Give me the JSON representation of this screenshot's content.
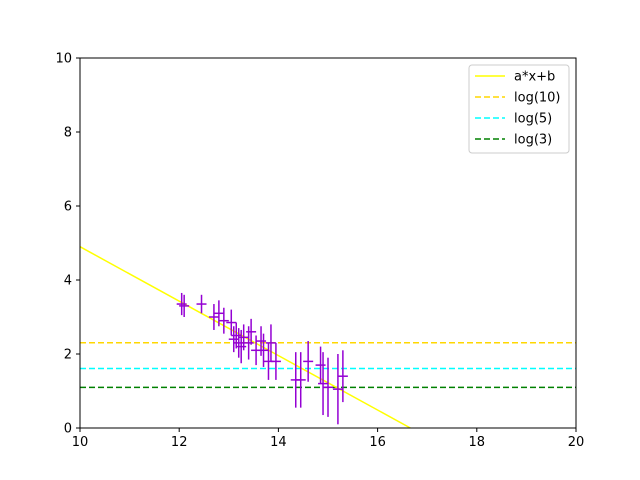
{
  "chart_data": {
    "type": "scatter",
    "title": "",
    "xlabel": "",
    "ylabel": "",
    "xlim": [
      10,
      20
    ],
    "ylim": [
      0,
      10
    ],
    "xticks": [
      "10",
      "12",
      "14",
      "16",
      "18",
      "20"
    ],
    "yticks": [
      "0",
      "2",
      "4",
      "6",
      "8",
      "10"
    ],
    "grid": false,
    "legend_position": "top-right",
    "fit_line": {
      "name": "a*x+b",
      "color": "#ffff00",
      "x": [
        10,
        16.66
      ],
      "y": [
        4.9,
        0
      ]
    },
    "hlines": [
      {
        "name": "log(10)",
        "y": 2.303,
        "color": "#ffd700",
        "style": "dashed"
      },
      {
        "name": "log(5)",
        "y": 1.609,
        "color": "#00ffff",
        "style": "dashed"
      },
      {
        "name": "log(3)",
        "y": 1.099,
        "color": "#008000",
        "style": "dashed"
      }
    ],
    "errorbar_series": {
      "color": "#9400d3",
      "points": [
        {
          "x": 12.05,
          "y": 3.35,
          "err": 0.3
        },
        {
          "x": 12.1,
          "y": 3.3,
          "err": 0.3
        },
        {
          "x": 12.45,
          "y": 3.35,
          "err": 0.25
        },
        {
          "x": 12.7,
          "y": 3.0,
          "err": 0.35
        },
        {
          "x": 12.8,
          "y": 3.1,
          "err": 0.35
        },
        {
          "x": 12.9,
          "y": 2.9,
          "err": 0.35
        },
        {
          "x": 13.05,
          "y": 2.85,
          "err": 0.35
        },
        {
          "x": 13.1,
          "y": 2.4,
          "err": 0.35
        },
        {
          "x": 13.15,
          "y": 2.5,
          "err": 0.35
        },
        {
          "x": 13.2,
          "y": 2.3,
          "err": 0.4
        },
        {
          "x": 13.25,
          "y": 2.2,
          "err": 0.45
        },
        {
          "x": 13.3,
          "y": 2.45,
          "err": 0.35
        },
        {
          "x": 13.4,
          "y": 2.3,
          "err": 0.45
        },
        {
          "x": 13.45,
          "y": 2.6,
          "err": 0.35
        },
        {
          "x": 13.55,
          "y": 2.1,
          "err": 0.4
        },
        {
          "x": 13.65,
          "y": 2.35,
          "err": 0.4
        },
        {
          "x": 13.7,
          "y": 2.1,
          "err": 0.45
        },
        {
          "x": 13.8,
          "y": 1.8,
          "err": 0.5
        },
        {
          "x": 13.85,
          "y": 2.3,
          "err": 0.5
        },
        {
          "x": 13.95,
          "y": 1.8,
          "err": 0.5
        },
        {
          "x": 14.35,
          "y": 1.3,
          "err": 0.75
        },
        {
          "x": 14.45,
          "y": 1.3,
          "err": 0.75
        },
        {
          "x": 14.6,
          "y": 1.8,
          "err": 0.55
        },
        {
          "x": 14.85,
          "y": 1.7,
          "err": 0.5
        },
        {
          "x": 14.9,
          "y": 1.2,
          "err": 0.85
        },
        {
          "x": 15.0,
          "y": 1.1,
          "err": 0.8
        },
        {
          "x": 15.2,
          "y": 1.05,
          "err": 0.95
        },
        {
          "x": 15.3,
          "y": 1.4,
          "err": 0.7
        }
      ]
    }
  }
}
